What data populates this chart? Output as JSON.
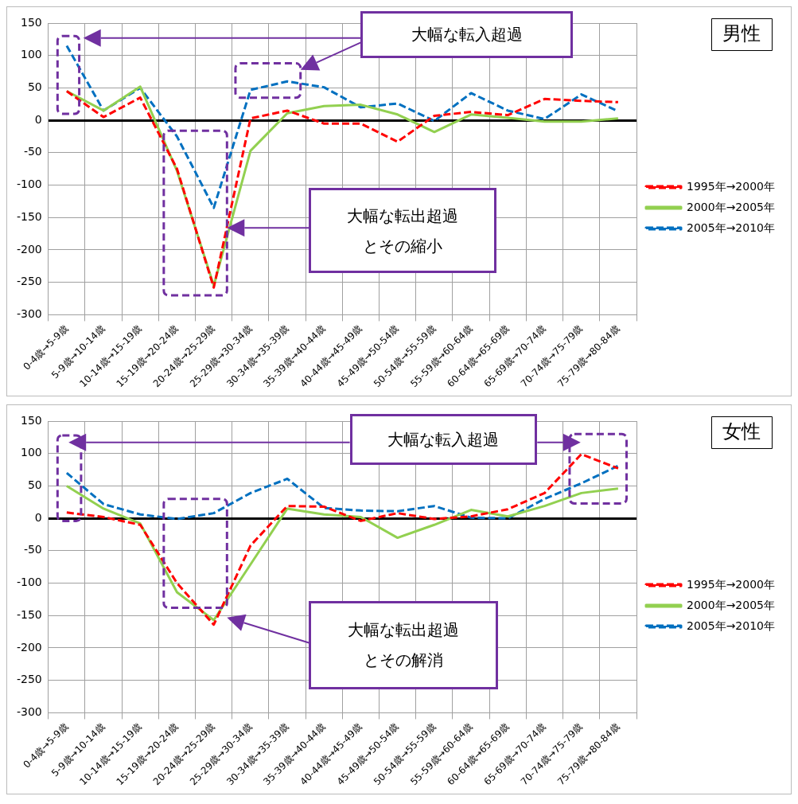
{
  "chart_data": [
    {
      "type": "line",
      "categories": [
        "0-4歳→5-9歳",
        "5-9歳→10-14歳",
        "10-14歳→15-19歳",
        "15-19歳→20-24歳",
        "20-24歳→25-29歳",
        "25-29歳→30-34歳",
        "30-34歳→35-39歳",
        "35-39歳→40-44歳",
        "40-44歳→45-49歳",
        "45-49歳→50-54歳",
        "50-54歳→55-59歳",
        "55-59歳→60-64歳",
        "60-64歳→65-69歳",
        "65-69歳→70-74歳",
        "70-74歳→75-79歳",
        "75-79歳→80-84歳"
      ],
      "series": [
        {
          "name": "1995年→2000年",
          "color": "#ff0000",
          "line_style": "dashed",
          "values": [
            45,
            5,
            35,
            -75,
            -258,
            3,
            15,
            -5,
            -5,
            -33,
            7,
            13,
            8,
            33,
            30,
            28
          ]
        },
        {
          "name": "2000年→2005年",
          "color": "#92d050",
          "line_style": "solid",
          "values": [
            45,
            15,
            52,
            -78,
            -255,
            -47,
            11,
            22,
            24,
            9,
            -18,
            9,
            4,
            -2,
            -2,
            3
          ]
        },
        {
          "name": "2005年→2010年",
          "color": "#0070c0",
          "line_style": "dashed",
          "values": [
            115,
            15,
            50,
            -25,
            -135,
            47,
            60,
            51,
            20,
            26,
            -1,
            42,
            15,
            2,
            40,
            14
          ]
        }
      ],
      "ylim": [
        -300,
        150
      ],
      "yticks": [
        -300,
        -250,
        -200,
        -150,
        -100,
        -50,
        0,
        50,
        100,
        150
      ],
      "grid": true,
      "legend": "right",
      "marker": "none",
      "annotations": [
        "大幅な転入超過",
        "大幅な転出超過とその縮小",
        "男性"
      ]
    },
    {
      "type": "line",
      "categories": [
        "0-4歳→5-9歳",
        "5-9歳→10-14歳",
        "10-14歳→15-19歳",
        "15-19歳→20-24歳",
        "20-24歳→25-29歳",
        "25-29歳→30-34歳",
        "30-34歳→35-39歳",
        "35-39歳→40-44歳",
        "40-44歳→45-49歳",
        "45-49歳→50-54歳",
        "50-54歳→55-59歳",
        "55-59歳→60-64歳",
        "60-64歳→65-69歳",
        "65-69歳→70-74歳",
        "70-74歳→75-79歳",
        "75-79歳→80-84歳"
      ],
      "series": [
        {
          "name": "1995年→2000年",
          "color": "#ff0000",
          "line_style": "dashed",
          "values": [
            9,
            2,
            -10,
            -100,
            -164,
            -42,
            19,
            18,
            -4,
            8,
            -1,
            3,
            14,
            39,
            99,
            77
          ]
        },
        {
          "name": "2000年→2005年",
          "color": "#92d050",
          "line_style": "solid",
          "values": [
            50,
            15,
            -8,
            -114,
            -157,
            -71,
            15,
            6,
            2,
            -30,
            -10,
            13,
            3,
            19,
            39,
            46
          ]
        },
        {
          "name": "2005年→2010年",
          "color": "#0070c0",
          "line_style": "dashed",
          "values": [
            70,
            22,
            6,
            -1,
            8,
            39,
            61,
            16,
            12,
            11,
            19,
            1,
            0,
            30,
            54,
            81
          ]
        }
      ],
      "ylim": [
        -300,
        150
      ],
      "yticks": [
        -300,
        -250,
        -200,
        -150,
        -100,
        -50,
        0,
        50,
        100,
        150
      ],
      "grid": true,
      "legend": "right",
      "marker": "none",
      "annotations": [
        "大幅な転入超過",
        "大幅な転出超過とその解消",
        "女性"
      ]
    }
  ]
}
